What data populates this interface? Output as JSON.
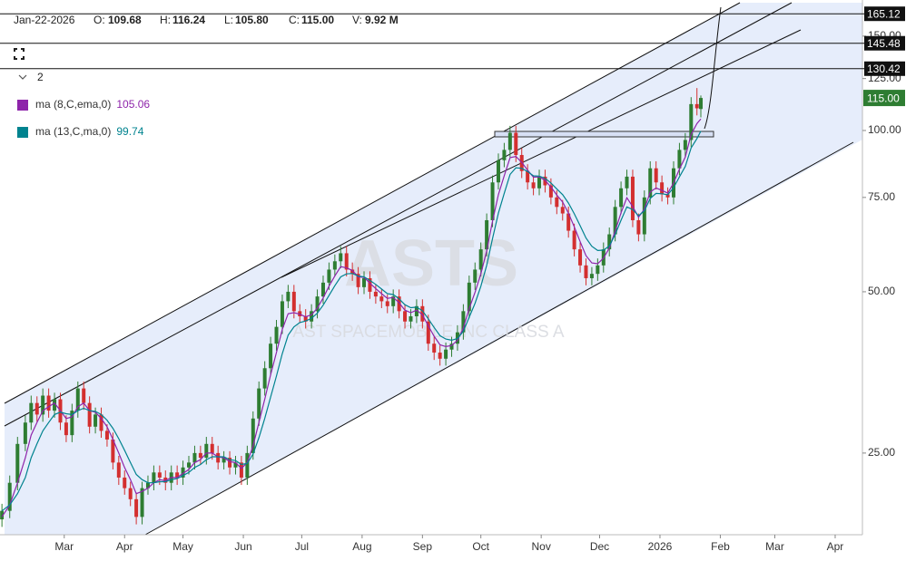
{
  "header": {
    "date": "Jan-22-2026",
    "fields": [
      {
        "label": "O:",
        "value": "109.68"
      },
      {
        "label": "H:",
        "value": "116.24"
      },
      {
        "label": "L:",
        "value": "105.80"
      },
      {
        "label": "C:",
        "value": "115.00"
      },
      {
        "label": "V:",
        "value": "9.92 M"
      }
    ]
  },
  "panel": {
    "indicator_count": "2"
  },
  "chart_data": {
    "type": "candlestick",
    "title": "ASTS",
    "subtitle": "AST SPACEMOBILE INC CLASS A",
    "x": [
      28,
      32,
      36,
      40,
      43,
      46,
      49,
      52,
      55,
      58,
      61,
      64,
      67,
      70,
      73,
      76,
      79,
      82,
      85,
      88,
      91,
      94,
      97,
      100,
      103,
      106,
      109,
      112,
      115,
      118,
      121,
      124,
      127,
      130,
      133,
      136,
      139,
      142,
      145,
      148,
      151,
      154,
      157,
      160,
      163,
      166,
      169,
      172,
      175,
      178,
      181,
      184,
      187,
      190,
      193,
      196,
      199,
      202,
      205,
      208,
      211,
      214,
      217,
      220,
      223,
      226,
      229,
      232,
      235,
      238,
      241,
      244,
      247,
      250,
      253,
      256,
      259,
      262,
      265,
      268,
      271,
      274,
      277,
      280,
      283,
      286,
      289,
      292,
      295,
      298,
      301,
      304,
      307,
      310,
      313,
      316,
      319,
      322,
      325,
      328,
      331,
      334,
      337,
      340,
      343,
      346,
      349,
      352,
      355,
      358,
      361,
      364,
      367,
      370,
      373,
      376,
      379,
      382,
      385,
      387
    ],
    "xlim": [
      27,
      470
    ],
    "xticks": [
      {
        "value": 60,
        "label": "Mar"
      },
      {
        "value": 91,
        "label": "Apr"
      },
      {
        "value": 121,
        "label": "May"
      },
      {
        "value": 152,
        "label": "Jun"
      },
      {
        "value": 182,
        "label": "Jul"
      },
      {
        "value": 213,
        "label": "Aug"
      },
      {
        "value": 244,
        "label": "Sep"
      },
      {
        "value": 274,
        "label": "Oct"
      },
      {
        "value": 305,
        "label": "Nov"
      },
      {
        "value": 335,
        "label": "Dec"
      },
      {
        "value": 366,
        "label": "2026"
      },
      {
        "value": 397,
        "label": "Feb"
      },
      {
        "value": 425,
        "label": "Mar"
      },
      {
        "value": 456,
        "label": "Apr"
      }
    ],
    "ylim": [
      17.6,
      175.2
    ],
    "log_scale": true,
    "yticks": [
      {
        "value": 25,
        "label": "25.00"
      },
      {
        "value": 50,
        "label": "50.00"
      },
      {
        "value": 75,
        "label": "75.00"
      },
      {
        "value": 100,
        "label": "100.00"
      },
      {
        "value": 125,
        "label": "125.00"
      },
      {
        "value": 150,
        "label": "150.00"
      }
    ],
    "up_color": "#2e7d32",
    "down_color": "#d32f2f",
    "candles": {
      "open": [
        18.8,
        19.5,
        22,
        26,
        28.5,
        31,
        29.5,
        32,
        30,
        31.5,
        28.5,
        27,
        30,
        33,
        31,
        28,
        29.5,
        27.5,
        26.5,
        24,
        22.5,
        21.5,
        20.5,
        19,
        21.5,
        22,
        23,
        22.5,
        22,
        23,
        22.5,
        23.5,
        24,
        25,
        24.5,
        26,
        25,
        24,
        24.5,
        23.5,
        24,
        22.5,
        25,
        29,
        33,
        36,
        40,
        43,
        48,
        50,
        46,
        45,
        44,
        46,
        49,
        52,
        55,
        57,
        59,
        55,
        54,
        51,
        53,
        50,
        49,
        48,
        47,
        49,
        46,
        44,
        45,
        47,
        44,
        40,
        38.5,
        37.5,
        39,
        40,
        42,
        46,
        52,
        55,
        60,
        68,
        80,
        88,
        92,
        99,
        90,
        84,
        80,
        78,
        82,
        79,
        75,
        72,
        70,
        65,
        60,
        56,
        53,
        54,
        56,
        60,
        64,
        72,
        78,
        82,
        68,
        64,
        75,
        85,
        80,
        76,
        75,
        85,
        92,
        96,
        112,
        109.68
      ],
      "high": [
        20.1,
        22.7,
        26.8,
        29.4,
        32,
        31.9,
        33,
        33,
        32.4,
        32.4,
        29.4,
        30.9,
        34,
        34,
        31.9,
        30.4,
        30.4,
        28.3,
        27.3,
        24.7,
        23.2,
        22.1,
        21.1,
        22.1,
        22.7,
        23.7,
        23.7,
        23.2,
        23.7,
        23.7,
        24.2,
        24.7,
        25.8,
        25.8,
        26.8,
        26.8,
        25.8,
        25.2,
        25.2,
        24.7,
        24.7,
        25.8,
        29.9,
        34,
        37.1,
        41.2,
        44.3,
        49.4,
        51.5,
        51.5,
        47.4,
        46.4,
        47.4,
        50.5,
        53.6,
        56.7,
        58.7,
        60.8,
        60.8,
        56.7,
        55.6,
        54.6,
        54.6,
        51.5,
        50.5,
        49.4,
        50.5,
        50.5,
        47.4,
        46.4,
        48.4,
        48.4,
        45.3,
        41.2,
        39.7,
        40.2,
        41.2,
        43.3,
        47.4,
        53.6,
        56.7,
        61.8,
        70,
        82.4,
        90.6,
        94.8,
        102,
        102,
        92.7,
        86.5,
        82.4,
        84.5,
        84.5,
        81.4,
        77.3,
        74.2,
        72.1,
        67,
        61.8,
        57.7,
        55.6,
        57.7,
        61.8,
        65.9,
        74.2,
        80.3,
        84.5,
        84.5,
        70,
        77.3,
        87.6,
        87.6,
        82.4,
        78.3,
        87.6,
        94.8,
        98.9,
        115.4,
        120,
        116.24
      ],
      "low": [
        18.2,
        18.9,
        21.3,
        25.2,
        27.6,
        28.6,
        28.6,
        29.1,
        29.1,
        27.6,
        26.2,
        26.2,
        29.1,
        30.1,
        27.2,
        27.2,
        26.7,
        25.7,
        23.3,
        21.8,
        20.9,
        19.9,
        18.4,
        18.4,
        20.9,
        21.3,
        21.8,
        21.3,
        21.3,
        21.8,
        21.8,
        22.8,
        23.3,
        23.8,
        23.8,
        24.3,
        23.3,
        23.3,
        22.8,
        22.8,
        21.8,
        21.8,
        24.3,
        28.1,
        32,
        34.9,
        38.8,
        41.7,
        46.6,
        44.6,
        43.7,
        42.7,
        42.7,
        44.6,
        47.5,
        50.4,
        53.4,
        55.3,
        53.4,
        52.4,
        49.5,
        49.5,
        48.5,
        47.5,
        46.6,
        45.6,
        45.6,
        44.6,
        42.7,
        42.7,
        43.7,
        42.7,
        38.8,
        37.3,
        36.4,
        36.4,
        37.8,
        38.8,
        40.7,
        44.6,
        50.4,
        53.4,
        58.2,
        66,
        77.6,
        85.4,
        89.2,
        87.3,
        81.5,
        77.6,
        75.7,
        75.7,
        76.6,
        72.8,
        69.8,
        67.9,
        63.1,
        58.2,
        54.3,
        51.4,
        51.4,
        52.4,
        54.3,
        58.2,
        62.1,
        69.8,
        75.7,
        66,
        62.1,
        62.1,
        72.8,
        77.6,
        73.7,
        72.8,
        72.8,
        82.5,
        89.2,
        93.1,
        106.7,
        105.8
      ],
      "close": [
        19.5,
        22,
        26,
        28.5,
        31,
        29.5,
        32,
        30,
        31.5,
        28.5,
        27,
        30,
        33,
        31,
        28,
        29.5,
        27.5,
        26.5,
        24,
        22.5,
        21.5,
        20.5,
        19,
        21.5,
        22,
        23,
        22.5,
        22,
        23,
        22.5,
        23.5,
        24,
        25,
        24.5,
        26,
        25,
        24,
        24.5,
        23.5,
        24,
        22.5,
        25,
        29,
        33,
        36,
        40,
        43,
        48,
        50,
        46,
        45,
        44,
        46,
        49,
        52,
        55,
        57,
        59,
        55,
        54,
        51,
        53,
        50,
        49,
        48,
        47,
        49,
        46,
        44,
        45,
        47,
        44,
        40,
        38.5,
        37.5,
        39,
        40,
        42,
        46,
        52,
        55,
        60,
        68,
        80,
        88,
        92,
        99,
        90,
        84,
        80,
        78,
        82,
        79,
        75,
        72,
        70,
        65,
        60,
        56,
        53,
        54,
        56,
        60,
        64,
        72,
        78,
        82,
        68,
        64,
        75,
        85,
        80,
        76,
        75,
        85,
        92,
        96,
        112,
        110,
        115
      ]
    },
    "series": [
      {
        "name": "ma (8,C,ema,0)",
        "color": "#8e24aa",
        "values": [
          19,
          20,
          22,
          24.5,
          27,
          28.5,
          30,
          30.5,
          31,
          30,
          29,
          29.2,
          30.5,
          31,
          30,
          29.8,
          29,
          28,
          26.5,
          25,
          23.5,
          22.3,
          21,
          21.2,
          21.5,
          22,
          22.3,
          22.2,
          22.5,
          22.5,
          22.9,
          23.3,
          24,
          24.3,
          25,
          25,
          24.6,
          24.5,
          24.1,
          24,
          23.4,
          24,
          25.8,
          28.5,
          31.5,
          35,
          38.5,
          42.5,
          45.5,
          45.7,
          45.4,
          44.9,
          45.3,
          46.6,
          48.7,
          51.2,
          53.5,
          55.7,
          55.4,
          54.8,
          53.3,
          53.2,
          51.9,
          50.7,
          49.6,
          48.6,
          48.8,
          47.7,
          46.2,
          45.7,
          46.2,
          45.3,
          43.2,
          41.3,
          39.8,
          39.5,
          39.7,
          40.6,
          42.8,
          46.5,
          49.9,
          54,
          59.6,
          67.8,
          75.9,
          82.3,
          89,
          89.4,
          87.2,
          84.3,
          81.8,
          81.9,
          80.7,
          78.4,
          75.8,
          73.5,
          70.1,
          66.1,
          62,
          58.4,
          56.6,
          56.4,
          57.8,
          60.3,
          65,
          70.2,
          74.9,
          72.1,
          68.9,
          71.3,
          76.8,
          78.1,
          77.3,
          76.4,
          79.8,
          84.7,
          89.2,
          98.3,
          103,
          105.06
        ]
      },
      {
        "name": "ma (13,C,ma,0)",
        "color": "#00838f",
        "values": [
          19.5,
          20,
          21,
          22.5,
          24.5,
          26,
          27.5,
          28.5,
          29.5,
          29.8,
          29.6,
          29.5,
          30,
          30.3,
          30,
          29.9,
          29.5,
          28.8,
          27.8,
          26.6,
          25.3,
          24,
          22.8,
          22.3,
          22,
          22,
          22.1,
          22.1,
          22.3,
          22.4,
          22.7,
          23,
          23.5,
          23.8,
          24.3,
          24.6,
          24.6,
          24.6,
          24.3,
          24.2,
          23.8,
          23.9,
          24.9,
          26.7,
          29,
          31.8,
          34.8,
          38.3,
          41.5,
          43,
          43.8,
          44.1,
          44.6,
          45.6,
          47.2,
          49.2,
          51.3,
          53.3,
          54,
          54.1,
          53.5,
          53.3,
          52.5,
          51.6,
          50.6,
          49.6,
          49.4,
          48.5,
          47.3,
          46.7,
          46.8,
          46.1,
          44.5,
          42.9,
          41.4,
          40.8,
          40.6,
          40.9,
          42.2,
          44.8,
          47.6,
          51.2,
          56,
          62.9,
          70.1,
          76.3,
          82.8,
          85.2,
          85,
          83.8,
          82.3,
          82.2,
          81.4,
          79.8,
          77.8,
          75.9,
          73.2,
          69.9,
          66.4,
          63,
          60.8,
          59.7,
          59.8,
          60.9,
          64,
          68,
          72,
          71.2,
          69.3,
          70.8,
          74.7,
          76.3,
          76.2,
          75.9,
          78.2,
          81.9,
          85.7,
          92.8,
          96.6,
          99.74
        ]
      }
    ],
    "price_levels": [
      165.12,
      145.48,
      130.42
    ],
    "last_price": {
      "value": 115,
      "label": "115.00"
    }
  }
}
